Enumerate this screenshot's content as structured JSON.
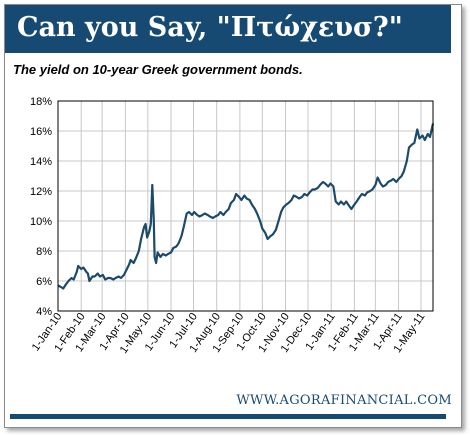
{
  "banner": {
    "title": "Can you Say, \"Πτώχευσ?\""
  },
  "footer": {
    "source": "WWW.AGORAFINANCIAL.COM"
  },
  "colors": {
    "banner": "#174a73",
    "line": "#1b4a6b",
    "grid": "#c8c8c8"
  },
  "chart_data": {
    "type": "line",
    "title": "The yield on 10-year Greek government bonds.",
    "xlabel": "",
    "ylabel": "",
    "x_ticks": [
      "1-Jan-10",
      "1-Feb-10",
      "1-Mar-10",
      "1-Apr-10",
      "1-May-10",
      "1-Jun-10",
      "1-Jul-10",
      "1-Aug-10",
      "1-Sep-10",
      "1-Oct-10",
      "1-Nov-10",
      "1-Dec-10",
      "1-Jan-11",
      "1-Feb-11",
      "1-Mar-11",
      "1-Apr-11",
      "1-May-11"
    ],
    "y_ticks": [
      "4%",
      "6%",
      "8%",
      "10%",
      "12%",
      "14%",
      "16%",
      "18%"
    ],
    "ylim": [
      4,
      18
    ],
    "xlim": [
      "2010-01-01",
      "2011-05-17"
    ],
    "grid": true,
    "legend": "none",
    "series": [
      {
        "points": [
          [
            "2010-01-01",
            5.7
          ],
          [
            "2010-01-05",
            5.6
          ],
          [
            "2010-01-08",
            5.5
          ],
          [
            "2010-01-12",
            5.8
          ],
          [
            "2010-01-15",
            6.0
          ],
          [
            "2010-01-19",
            6.2
          ],
          [
            "2010-01-22",
            6.1
          ],
          [
            "2010-01-26",
            6.6
          ],
          [
            "2010-01-28",
            7.0
          ],
          [
            "2010-02-01",
            6.8
          ],
          [
            "2010-02-04",
            6.9
          ],
          [
            "2010-02-08",
            6.6
          ],
          [
            "2010-02-10",
            6.5
          ],
          [
            "2010-02-12",
            6.0
          ],
          [
            "2010-02-16",
            6.3
          ],
          [
            "2010-02-19",
            6.3
          ],
          [
            "2010-02-23",
            6.5
          ],
          [
            "2010-02-26",
            6.3
          ],
          [
            "2010-03-02",
            6.4
          ],
          [
            "2010-03-05",
            6.1
          ],
          [
            "2010-03-09",
            6.2
          ],
          [
            "2010-03-12",
            6.2
          ],
          [
            "2010-03-16",
            6.1
          ],
          [
            "2010-03-19",
            6.2
          ],
          [
            "2010-03-23",
            6.3
          ],
          [
            "2010-03-26",
            6.2
          ],
          [
            "2010-03-30",
            6.4
          ],
          [
            "2010-04-01",
            6.6
          ],
          [
            "2010-04-06",
            7.1
          ],
          [
            "2010-04-08",
            7.4
          ],
          [
            "2010-04-12",
            7.2
          ],
          [
            "2010-04-15",
            7.5
          ],
          [
            "2010-04-19",
            8.0
          ],
          [
            "2010-04-22",
            8.8
          ],
          [
            "2010-04-26",
            9.6
          ],
          [
            "2010-04-28",
            9.8
          ],
          [
            "2010-04-30",
            8.9
          ],
          [
            "2010-05-03",
            9.3
          ],
          [
            "2010-05-05",
            9.8
          ],
          [
            "2010-05-07",
            12.4
          ],
          [
            "2010-05-09",
            10.0
          ],
          [
            "2010-05-10",
            7.6
          ],
          [
            "2010-05-12",
            7.2
          ],
          [
            "2010-05-14",
            7.9
          ],
          [
            "2010-05-18",
            7.6
          ],
          [
            "2010-05-21",
            7.8
          ],
          [
            "2010-05-25",
            7.7
          ],
          [
            "2010-05-28",
            7.8
          ],
          [
            "2010-06-01",
            7.9
          ],
          [
            "2010-06-04",
            8.2
          ],
          [
            "2010-06-08",
            8.3
          ],
          [
            "2010-06-11",
            8.5
          ],
          [
            "2010-06-15",
            9.0
          ],
          [
            "2010-06-18",
            9.6
          ],
          [
            "2010-06-22",
            10.5
          ],
          [
            "2010-06-25",
            10.6
          ],
          [
            "2010-06-29",
            10.4
          ],
          [
            "2010-07-02",
            10.6
          ],
          [
            "2010-07-06",
            10.4
          ],
          [
            "2010-07-09",
            10.3
          ],
          [
            "2010-07-13",
            10.4
          ],
          [
            "2010-07-16",
            10.5
          ],
          [
            "2010-07-20",
            10.4
          ],
          [
            "2010-07-23",
            10.3
          ],
          [
            "2010-07-27",
            10.2
          ],
          [
            "2010-07-30",
            10.3
          ],
          [
            "2010-08-03",
            10.4
          ],
          [
            "2010-08-06",
            10.6
          ],
          [
            "2010-08-10",
            10.4
          ],
          [
            "2010-08-13",
            10.6
          ],
          [
            "2010-08-17",
            10.8
          ],
          [
            "2010-08-20",
            11.2
          ],
          [
            "2010-08-24",
            11.4
          ],
          [
            "2010-08-27",
            11.8
          ],
          [
            "2010-08-31",
            11.6
          ],
          [
            "2010-09-03",
            11.4
          ],
          [
            "2010-09-07",
            11.7
          ],
          [
            "2010-09-10",
            11.5
          ],
          [
            "2010-09-14",
            11.4
          ],
          [
            "2010-09-17",
            11.1
          ],
          [
            "2010-09-21",
            10.8
          ],
          [
            "2010-09-24",
            10.5
          ],
          [
            "2010-09-28",
            10.0
          ],
          [
            "2010-10-01",
            9.5
          ],
          [
            "2010-10-05",
            9.2
          ],
          [
            "2010-10-08",
            8.8
          ],
          [
            "2010-10-12",
            9.0
          ],
          [
            "2010-10-15",
            9.1
          ],
          [
            "2010-10-19",
            9.4
          ],
          [
            "2010-10-22",
            9.9
          ],
          [
            "2010-10-26",
            10.6
          ],
          [
            "2010-10-29",
            10.9
          ],
          [
            "2010-11-02",
            11.1
          ],
          [
            "2010-11-05",
            11.2
          ],
          [
            "2010-11-09",
            11.4
          ],
          [
            "2010-11-12",
            11.7
          ],
          [
            "2010-11-16",
            11.6
          ],
          [
            "2010-11-19",
            11.5
          ],
          [
            "2010-11-23",
            11.6
          ],
          [
            "2010-11-26",
            11.8
          ],
          [
            "2010-11-30",
            11.7
          ],
          [
            "2010-12-03",
            11.9
          ],
          [
            "2010-12-07",
            12.1
          ],
          [
            "2010-12-10",
            12.1
          ],
          [
            "2010-12-14",
            12.2
          ],
          [
            "2010-12-17",
            12.4
          ],
          [
            "2010-12-21",
            12.6
          ],
          [
            "2010-12-24",
            12.5
          ],
          [
            "2010-12-28",
            12.3
          ],
          [
            "2010-12-31",
            12.5
          ],
          [
            "2011-01-04",
            12.3
          ],
          [
            "2011-01-07",
            11.3
          ],
          [
            "2011-01-11",
            11.1
          ],
          [
            "2011-01-14",
            11.3
          ],
          [
            "2011-01-18",
            11.1
          ],
          [
            "2011-01-21",
            11.3
          ],
          [
            "2011-01-25",
            11.0
          ],
          [
            "2011-01-28",
            10.8
          ],
          [
            "2011-02-01",
            11.1
          ],
          [
            "2011-02-04",
            11.3
          ],
          [
            "2011-02-08",
            11.6
          ],
          [
            "2011-02-11",
            11.8
          ],
          [
            "2011-02-15",
            11.7
          ],
          [
            "2011-02-18",
            11.9
          ],
          [
            "2011-02-22",
            12.0
          ],
          [
            "2011-02-25",
            12.1
          ],
          [
            "2011-03-01",
            12.4
          ],
          [
            "2011-03-04",
            12.9
          ],
          [
            "2011-03-08",
            12.5
          ],
          [
            "2011-03-11",
            12.3
          ],
          [
            "2011-03-15",
            12.4
          ],
          [
            "2011-03-18",
            12.6
          ],
          [
            "2011-03-22",
            12.7
          ],
          [
            "2011-03-25",
            12.8
          ],
          [
            "2011-03-29",
            12.6
          ],
          [
            "2011-04-01",
            12.8
          ],
          [
            "2011-04-05",
            13.0
          ],
          [
            "2011-04-08",
            13.3
          ],
          [
            "2011-04-12",
            14.0
          ],
          [
            "2011-04-15",
            14.9
          ],
          [
            "2011-04-19",
            15.1
          ],
          [
            "2011-04-22",
            15.2
          ],
          [
            "2011-04-26",
            16.1
          ],
          [
            "2011-04-29",
            15.5
          ],
          [
            "2011-05-03",
            15.7
          ],
          [
            "2011-05-06",
            15.4
          ],
          [
            "2011-05-10",
            15.8
          ],
          [
            "2011-05-13",
            15.6
          ],
          [
            "2011-05-17",
            16.5
          ]
        ]
      }
    ]
  }
}
